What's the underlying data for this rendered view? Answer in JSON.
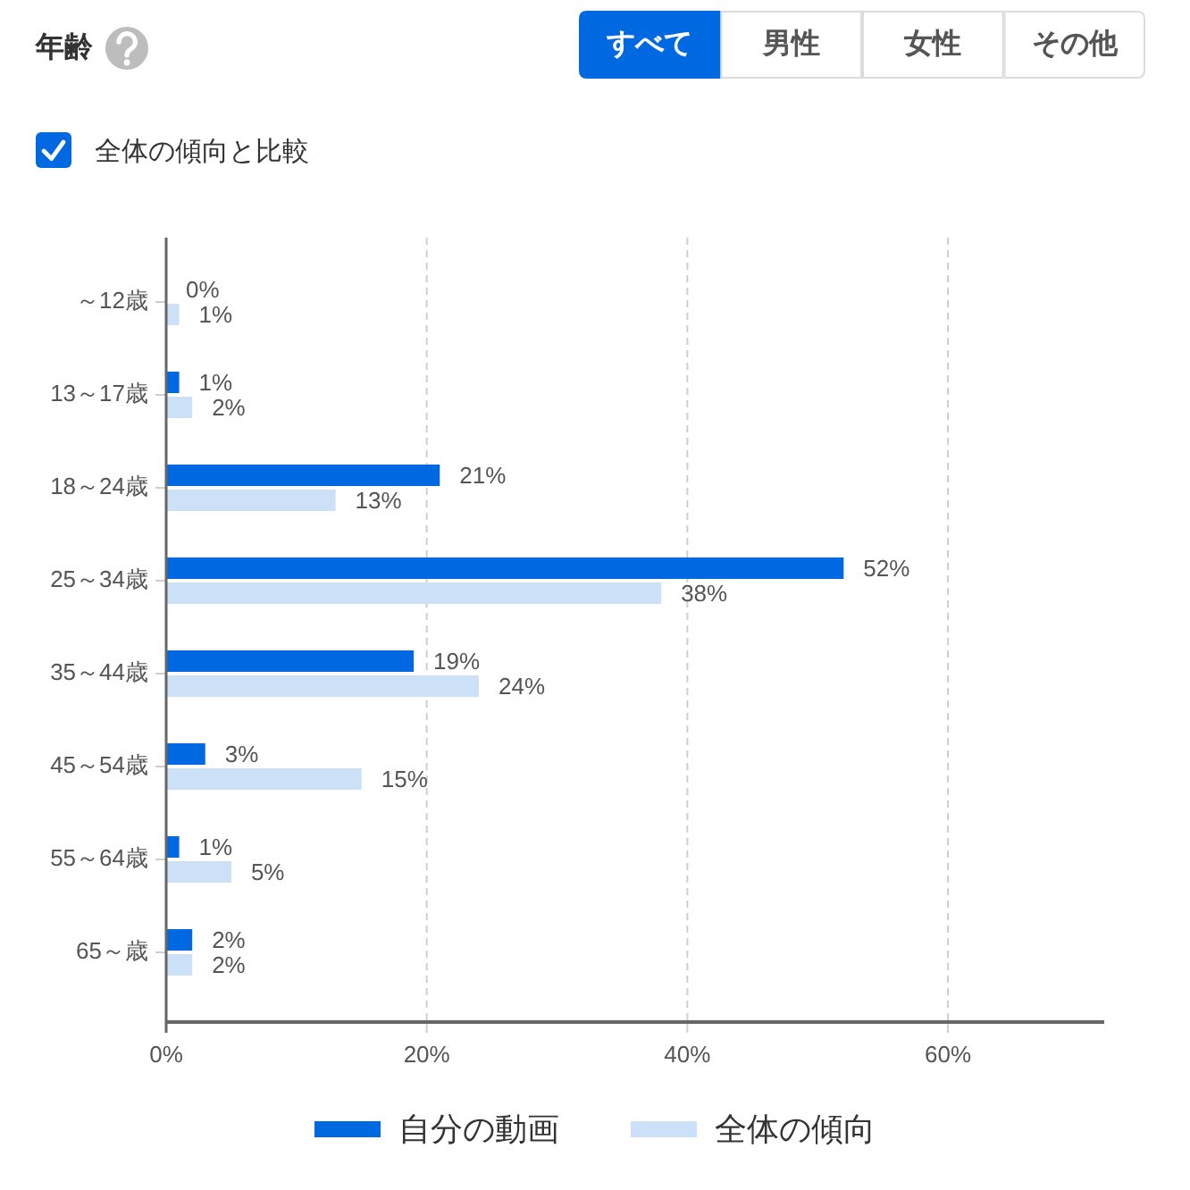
{
  "chart_data": {
    "type": "bar",
    "orientation": "horizontal",
    "title": "年齢",
    "annotations": [
      "すべて",
      "男性",
      "女性",
      "その他",
      "全体の傾向と比較"
    ],
    "categories": [
      "～12歳",
      "13～17歳",
      "18～24歳",
      "25～34歳",
      "35～44歳",
      "45～54歳",
      "55～64歳",
      "65～歳"
    ],
    "series": [
      {
        "name": "自分の動画",
        "color": "#0068e0",
        "values": [
          0,
          1,
          21,
          52,
          19,
          3,
          1,
          2
        ],
        "value_labels": [
          "0%",
          "1%",
          "21%",
          "52%",
          "19%",
          "3%",
          "1%",
          "2%"
        ]
      },
      {
        "name": "全体の傾向",
        "color": "#cce0f8",
        "values": [
          1,
          2,
          13,
          38,
          24,
          15,
          5,
          2
        ],
        "value_labels": [
          "1%",
          "2%",
          "13%",
          "38%",
          "24%",
          "15%",
          "5%",
          "2%"
        ]
      }
    ],
    "xlim": [
      0,
      72
    ],
    "xticks": [
      {
        "value": 0,
        "label": "0%"
      },
      {
        "value": 20,
        "label": "20%"
      },
      {
        "value": 40,
        "label": "40%"
      },
      {
        "value": 60,
        "label": "60%"
      }
    ],
    "grid": "x",
    "legend": "bottom"
  }
}
